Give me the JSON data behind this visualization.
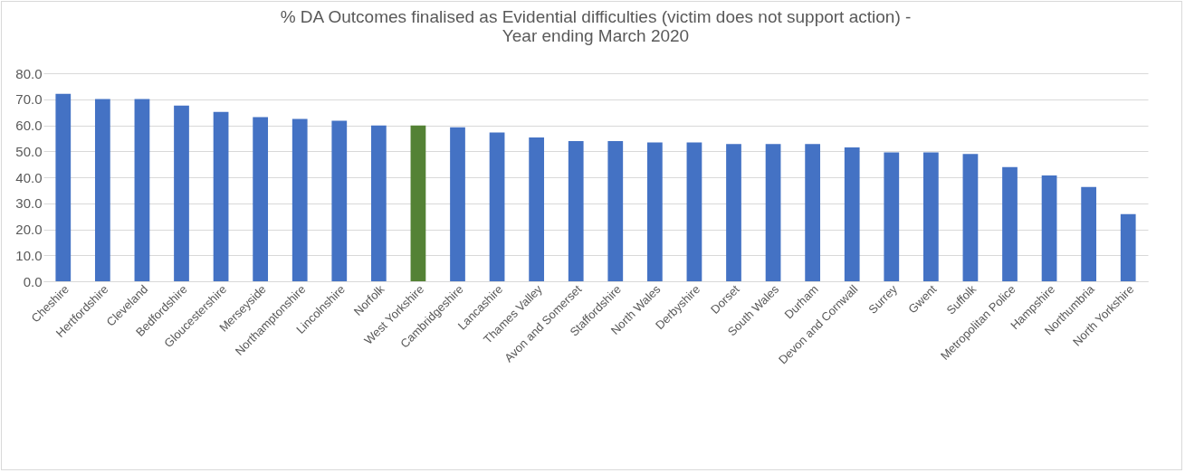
{
  "chart_data": {
    "type": "bar",
    "title": [
      "% DA Outcomes finalised as  Evidential difficulties (victim does not support action) -",
      "Year ending March 2020"
    ],
    "categories": [
      "Cheshire",
      "Hertfordshire",
      "Cleveland",
      "Bedfordshire",
      "Gloucestershire",
      "Merseyside",
      "Northamptonshire",
      "Lincolnshire",
      "Norfolk",
      "West Yorkshire",
      "Cambridgeshire",
      "Lancashire",
      "Thames Valley",
      "Avon and Somerset",
      "Staffordshire",
      "North Wales",
      "Derbyshire",
      "Dorset",
      "South Wales",
      "Durham",
      "Devon and Cornwall",
      "Surrey",
      "Gwent",
      "Suffolk",
      "Metropolitan Police",
      "Hampshire",
      "Northumbria",
      "North Yorkshire"
    ],
    "values": [
      72.1,
      70.1,
      70.1,
      67.6,
      65.1,
      63.1,
      62.4,
      61.7,
      59.9,
      59.9,
      59.2,
      57.2,
      55.3,
      53.9,
      53.9,
      53.4,
      53.4,
      52.8,
      52.8,
      52.8,
      51.5,
      49.6,
      49.6,
      49.0,
      43.9,
      40.7,
      36.3,
      25.8
    ],
    "colors": [
      "#4472c4",
      "#4472c4",
      "#4472c4",
      "#4472c4",
      "#4472c4",
      "#4472c4",
      "#4472c4",
      "#4472c4",
      "#4472c4",
      "#548235",
      "#4472c4",
      "#4472c4",
      "#4472c4",
      "#4472c4",
      "#4472c4",
      "#4472c4",
      "#4472c4",
      "#4472c4",
      "#4472c4",
      "#4472c4",
      "#4472c4",
      "#4472c4",
      "#4472c4",
      "#4472c4",
      "#4472c4",
      "#4472c4",
      "#4472c4",
      "#4472c4"
    ],
    "ylim": [
      0,
      80
    ],
    "yticks": [
      {
        "value": 0,
        "label": "0.0"
      },
      {
        "value": 10,
        "label": "10.0"
      },
      {
        "value": 20,
        "label": "20.0"
      },
      {
        "value": 30,
        "label": "30.0"
      },
      {
        "value": 40,
        "label": "40.0"
      },
      {
        "value": 50,
        "label": "50.0"
      },
      {
        "value": 60,
        "label": "60.0"
      },
      {
        "value": 70,
        "label": "70.0"
      },
      {
        "value": 80,
        "label": "80.0"
      }
    ],
    "grid": "y"
  }
}
